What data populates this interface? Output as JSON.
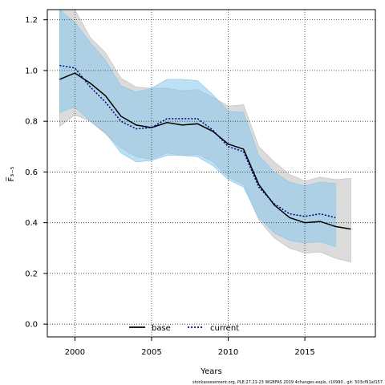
{
  "chart_data": {
    "type": "line",
    "xlabel": "Years",
    "ylabel": "F̅₃₋₅",
    "xlim": [
      1998.2,
      2019.6
    ],
    "ylim": [
      -0.05,
      1.24
    ],
    "x_ticks": [
      2000,
      2005,
      2010,
      2015
    ],
    "y_ticks": [
      0.0,
      0.2,
      0.4,
      0.6,
      0.8,
      1.0,
      1.2
    ],
    "y_tick_labels": [
      "0.0",
      "0.2",
      "0.4",
      "0.6",
      "0.8",
      "1.0",
      "1.2"
    ],
    "grid": true,
    "legend_position": "bottom-left",
    "series": [
      {
        "name": "base",
        "color": "#000000",
        "line_style": "solid",
        "band_color": "#bdbdbd",
        "x": [
          1999,
          2000,
          2001,
          2002,
          2003,
          2004,
          2005,
          2006,
          2007,
          2008,
          2009,
          2010,
          2011,
          2012,
          2013,
          2014,
          2015,
          2016,
          2017,
          2018
        ],
        "values": [
          0.965,
          0.99,
          0.95,
          0.9,
          0.82,
          0.785,
          0.775,
          0.795,
          0.785,
          0.79,
          0.76,
          0.71,
          0.69,
          0.55,
          0.47,
          0.42,
          0.4,
          0.405,
          0.385,
          0.375
        ],
        "lower": [
          0.78,
          0.825,
          0.8,
          0.75,
          0.695,
          0.66,
          0.65,
          0.675,
          0.665,
          0.67,
          0.64,
          0.58,
          0.55,
          0.41,
          0.34,
          0.3,
          0.28,
          0.285,
          0.26,
          0.245
        ],
        "upper": [
          1.24,
          1.24,
          1.13,
          1.07,
          0.97,
          0.935,
          0.93,
          0.93,
          0.92,
          0.925,
          0.895,
          0.86,
          0.865,
          0.7,
          0.64,
          0.59,
          0.565,
          0.58,
          0.57,
          0.575
        ]
      },
      {
        "name": "current",
        "color": "#000080",
        "line_style": "dotted",
        "band_color": "#87c7eb",
        "x": [
          1999,
          2000,
          2001,
          2002,
          2003,
          2004,
          2005,
          2006,
          2007,
          2008,
          2009,
          2010,
          2011,
          2012,
          2013,
          2014,
          2015,
          2016,
          2017
        ],
        "values": [
          1.02,
          1.01,
          0.935,
          0.875,
          0.8,
          0.77,
          0.775,
          0.81,
          0.81,
          0.81,
          0.765,
          0.7,
          0.68,
          0.54,
          0.475,
          0.435,
          0.425,
          0.435,
          0.42
        ],
        "lower": [
          0.835,
          0.855,
          0.8,
          0.755,
          0.675,
          0.64,
          0.645,
          0.665,
          0.665,
          0.66,
          0.625,
          0.57,
          0.54,
          0.42,
          0.36,
          0.33,
          0.32,
          0.325,
          0.305
        ],
        "upper": [
          1.24,
          1.19,
          1.11,
          1.04,
          0.94,
          0.915,
          0.93,
          0.965,
          0.965,
          0.96,
          0.905,
          0.84,
          0.835,
          0.665,
          0.6,
          0.56,
          0.545,
          0.56,
          0.555
        ]
      }
    ],
    "footnote": "stockassessment.org,  PLE.27.21-23  WGBFAS  2019  4changes  expls,  r10990 ,  git:  503cf91af157"
  }
}
